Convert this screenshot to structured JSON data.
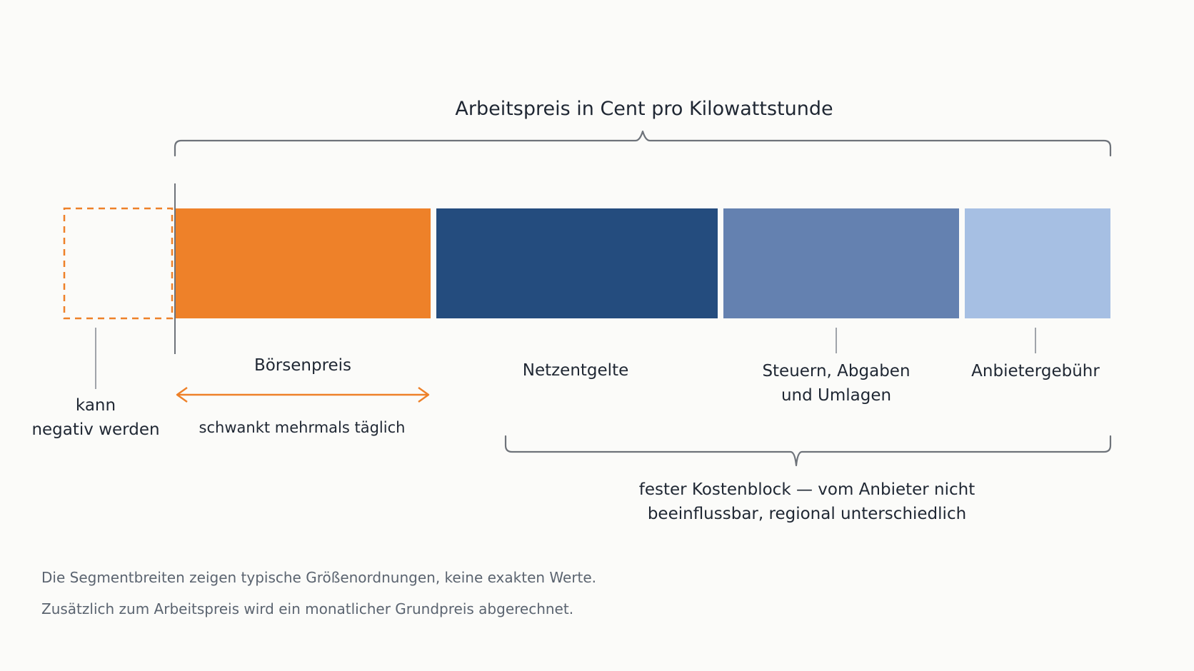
{
  "top_brace": {
    "label": "Arbeitspreis in Cent pro Kilowattstunde"
  },
  "segments": [
    {
      "id": "boersenpreis",
      "color": "#ee8129"
    },
    {
      "id": "netzentgelte",
      "color": "#244c7e"
    },
    {
      "id": "steuern",
      "color": "#6481b0"
    },
    {
      "id": "anbieter",
      "color": "#a6bfe3"
    }
  ],
  "negative_box": {
    "color": "#ee8129",
    "label_line1": "kann",
    "label_line2": "negativ werden"
  },
  "labels": {
    "boersenpreis": "Börsenpreis",
    "boersen_note": "schwankt mehrmals täglich",
    "netzentgelte": "Netzentgelte",
    "steuern_line1": "Steuern, Abgaben",
    "steuern_line2": "und Umlagen",
    "anbieter": "Anbietergebühr"
  },
  "bottom_brace": {
    "label_line1": "fester Kostenblock — vom Anbieter nicht",
    "label_line2": "beeinflussbar, regional unterschiedlich"
  },
  "footnotes": {
    "line1": "Die Segmentbreiten zeigen typische Größenordnungen, keine exakten Werte.",
    "line2": "Zusätzlich zum Arbeitspreis wird ein monatlicher Grundpreis abgerechnet."
  }
}
